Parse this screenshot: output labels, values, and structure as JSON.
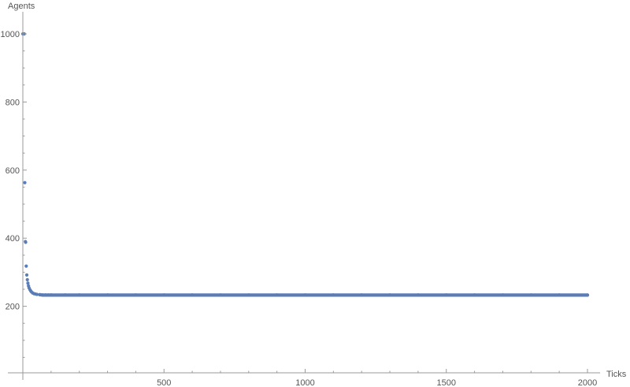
{
  "chart_data": {
    "type": "scatter",
    "title": "",
    "xlabel": "Ticks",
    "ylabel": "Agents",
    "xlim": [
      0,
      2000
    ],
    "ylim": [
      0,
      1000
    ],
    "grid": false,
    "legend": "none",
    "x_ticks": [
      500,
      1000,
      1500,
      2000
    ],
    "y_ticks": [
      200,
      400,
      600,
      800,
      1000
    ],
    "point_color": "#5b7db5",
    "axis_color": "#999999",
    "series": [
      {
        "points": [
          [
            0,
            1000
          ],
          [
            5,
            1000
          ],
          [
            7,
            563
          ],
          [
            9,
            390
          ],
          [
            10,
            388
          ],
          [
            12,
            318
          ],
          [
            14,
            292
          ],
          [
            16,
            278
          ],
          [
            18,
            268
          ],
          [
            20,
            260
          ],
          [
            22,
            254
          ],
          [
            25,
            249
          ],
          [
            28,
            245
          ],
          [
            31,
            242
          ],
          [
            35,
            239
          ],
          [
            40,
            237
          ],
          [
            45,
            236
          ],
          [
            50,
            235
          ],
          [
            60,
            234
          ],
          [
            70,
            233
          ],
          [
            80,
            233
          ],
          [
            90,
            233
          ],
          [
            100,
            233
          ],
          [
            150,
            233
          ],
          [
            200,
            233
          ],
          [
            300,
            233
          ],
          [
            400,
            233
          ],
          [
            500,
            233
          ],
          [
            600,
            233
          ],
          [
            700,
            233
          ],
          [
            800,
            233
          ],
          [
            900,
            233
          ],
          [
            1000,
            233
          ],
          [
            1100,
            233
          ],
          [
            1200,
            233
          ],
          [
            1300,
            233
          ],
          [
            1400,
            233
          ],
          [
            1500,
            233
          ],
          [
            1600,
            233
          ],
          [
            1700,
            233
          ],
          [
            1800,
            233
          ],
          [
            1900,
            233
          ],
          [
            2000,
            233
          ]
        ]
      }
    ]
  }
}
